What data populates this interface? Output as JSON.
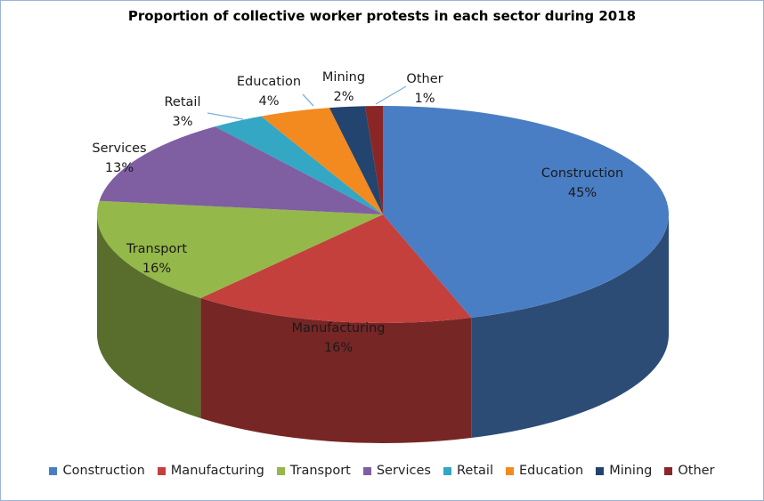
{
  "chart_data": {
    "type": "pie",
    "title": "Proportion of collective worker protests in each sector during 2018",
    "categories": [
      "Construction",
      "Manufacturing",
      "Transport",
      "Services",
      "Retail",
      "Education",
      "Mining",
      "Other"
    ],
    "values": [
      45,
      16,
      16,
      13,
      3,
      4,
      2,
      1
    ],
    "percent_labels": [
      "45%",
      "16%",
      "16%",
      "13%",
      "3%",
      "4%",
      "2%",
      "1%"
    ],
    "colors": [
      "#4a7ec4",
      "#c4403d",
      "#94b84a",
      "#7f5ea2",
      "#33a7c4",
      "#f28a1f",
      "#22446e",
      "#8a2626"
    ],
    "legend_position": "bottom"
  }
}
